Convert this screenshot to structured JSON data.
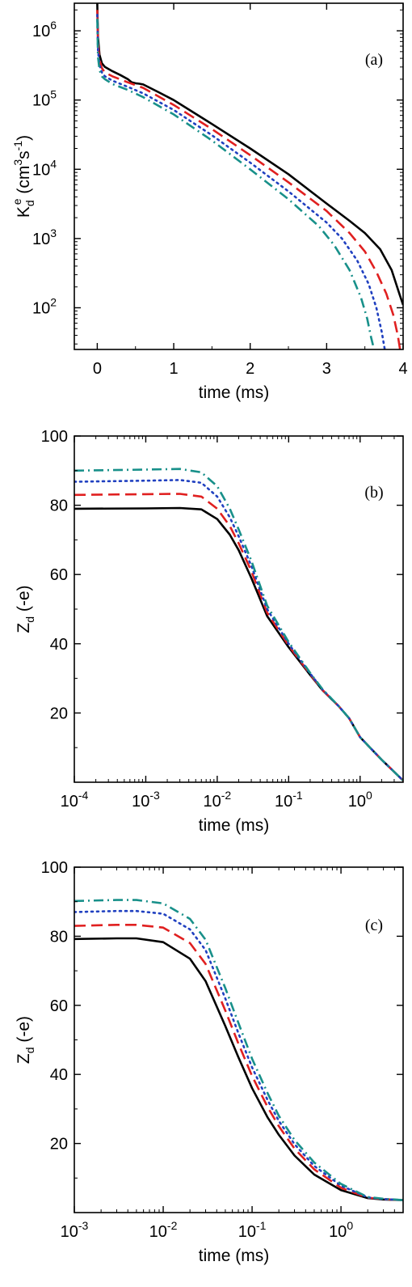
{
  "chart_data": [
    {
      "panel": "(a)",
      "type": "line",
      "xlabel": "time (ms)",
      "ylabel": "K",
      "ylabel_sub": "d",
      "ylabel_sup": "e",
      "ylabel_units_pre": "(cm",
      "ylabel_units_sup1": "3",
      "ylabel_units_mid": "s",
      "ylabel_units_sup2": "-1",
      "ylabel_units_post": ")",
      "xscale": "linear",
      "yscale": "log",
      "xlim": [
        -0.3,
        4.0
      ],
      "ylim": [
        25,
        2500000
      ],
      "xticks": [
        0,
        1,
        2,
        3,
        4
      ],
      "xtick_labels": [
        "0",
        "1",
        "2",
        "3",
        "4"
      ],
      "yticks": [
        100,
        1000,
        10000,
        100000,
        1000000
      ],
      "ytick_base": "10",
      "ytick_exps": [
        "2",
        "3",
        "4",
        "5",
        "6"
      ],
      "legend": "none",
      "series": [
        {
          "style": "solid",
          "color": "#000000",
          "x": [
            0.0,
            0.01,
            0.03,
            0.06,
            0.1,
            0.2,
            0.3,
            0.4,
            0.45,
            0.5,
            0.55,
            0.6,
            0.8,
            1.0,
            1.5,
            2.0,
            2.5,
            3.0,
            3.3,
            3.5,
            3.7,
            3.85,
            3.95,
            4.0
          ],
          "y": [
            2500000,
            800000,
            450000,
            340000,
            300000,
            260000,
            230000,
            200000,
            180000,
            175000,
            172000,
            168000,
            130000,
            100000,
            45000,
            20000,
            8500,
            3200,
            1800,
            1200,
            700,
            350,
            160,
            110
          ]
        },
        {
          "style": "dashed",
          "color": "#e02020",
          "x": [
            0.0,
            0.01,
            0.03,
            0.06,
            0.1,
            0.2,
            0.4,
            0.6,
            1.0,
            1.5,
            2.0,
            2.5,
            3.0,
            3.3,
            3.5,
            3.65,
            3.78,
            3.87,
            3.93,
            3.96
          ],
          "y": [
            2000000,
            650000,
            380000,
            290000,
            250000,
            220000,
            180000,
            150000,
            85000,
            38000,
            16000,
            6500,
            2500,
            1200,
            650,
            330,
            160,
            80,
            40,
            25
          ]
        },
        {
          "style": "dotted",
          "color": "#2040c0",
          "x": [
            0.0,
            0.01,
            0.03,
            0.06,
            0.1,
            0.2,
            0.4,
            0.6,
            1.0,
            1.5,
            2.0,
            2.5,
            3.0,
            3.2,
            3.4,
            3.55,
            3.65,
            3.72,
            3.76
          ],
          "y": [
            1700000,
            520000,
            320000,
            250000,
            220000,
            190000,
            155000,
            125000,
            72000,
            31000,
            12500,
            4800,
            1700,
            1000,
            480,
            220,
            100,
            45,
            25
          ]
        },
        {
          "style": "dashdot",
          "color": "#18908a",
          "x": [
            0.0,
            0.01,
            0.03,
            0.06,
            0.1,
            0.2,
            0.4,
            0.6,
            1.0,
            1.5,
            2.0,
            2.5,
            2.9,
            3.1,
            3.3,
            3.45,
            3.53,
            3.58,
            3.62
          ],
          "y": [
            1500000,
            420000,
            270000,
            220000,
            200000,
            170000,
            140000,
            110000,
            62000,
            26000,
            10000,
            3700,
            1500,
            800,
            350,
            140,
            70,
            38,
            25
          ]
        }
      ]
    },
    {
      "panel": "(b)",
      "type": "line",
      "xlabel": "time (ms)",
      "ylabel": "Z",
      "ylabel_sub": "d",
      "ylabel_units": "(-e)",
      "xscale": "log",
      "yscale": "linear",
      "xlim": [
        0.0001,
        4.0
      ],
      "ylim": [
        0,
        100
      ],
      "xticks": [
        0.0001,
        0.001,
        0.01,
        0.1,
        1
      ],
      "xtick_base": "10",
      "xtick_exps": [
        "-4",
        "-3",
        "-2",
        "-1",
        "0"
      ],
      "yticks": [
        20,
        40,
        60,
        80,
        100
      ],
      "ytick_labels": [
        "20",
        "40",
        "60",
        "80",
        "100"
      ],
      "legend": "none",
      "series": [
        {
          "style": "solid",
          "color": "#000000",
          "x": [
            0.0001,
            0.001,
            0.003,
            0.006,
            0.01,
            0.015,
            0.02,
            0.03,
            0.05,
            0.1,
            0.2,
            0.3,
            0.5,
            0.7,
            1.0,
            2.0,
            3.0,
            4.0
          ],
          "y": [
            79,
            79.1,
            79.2,
            78.8,
            76,
            71.5,
            67,
            59,
            48,
            39,
            31,
            26.5,
            22,
            18.5,
            13,
            6.5,
            3,
            0.5
          ]
        },
        {
          "style": "dashed",
          "color": "#e02020",
          "x": [
            0.0001,
            0.001,
            0.003,
            0.006,
            0.01,
            0.015,
            0.02,
            0.03,
            0.05,
            0.1,
            0.2,
            0.3,
            0.5,
            0.7,
            1.0,
            2.0,
            3.0,
            4.0
          ],
          "y": [
            83,
            83.2,
            83.3,
            82.5,
            79,
            74,
            69,
            61,
            49,
            39.5,
            31.2,
            26.6,
            22,
            18.5,
            13,
            6.5,
            3,
            0.5
          ]
        },
        {
          "style": "dotted",
          "color": "#2040c0",
          "x": [
            0.0001,
            0.001,
            0.003,
            0.006,
            0.01,
            0.015,
            0.02,
            0.03,
            0.05,
            0.1,
            0.2,
            0.3,
            0.5,
            0.7,
            1.0,
            2.0,
            3.0,
            4.0
          ],
          "y": [
            86.8,
            87.1,
            87.3,
            86.5,
            82.5,
            76.5,
            71,
            62.5,
            50,
            40,
            31.4,
            26.7,
            22,
            18.5,
            13,
            6.5,
            3,
            0.5
          ]
        },
        {
          "style": "dashdot",
          "color": "#18908a",
          "x": [
            0.0001,
            0.001,
            0.003,
            0.006,
            0.01,
            0.015,
            0.02,
            0.03,
            0.05,
            0.1,
            0.2,
            0.3,
            0.5,
            0.7,
            1.0,
            2.0,
            3.0,
            4.0
          ],
          "y": [
            90,
            90.3,
            90.5,
            89.5,
            85.5,
            79,
            73,
            64,
            51,
            40.5,
            31.6,
            26.8,
            22,
            18.5,
            13,
            6.5,
            3,
            0.5
          ]
        }
      ]
    },
    {
      "panel": "(c)",
      "type": "line",
      "xlabel": "time (ms)",
      "ylabel": "Z",
      "ylabel_sub": "d",
      "ylabel_units": "(-e)",
      "xscale": "log",
      "yscale": "linear",
      "xlim": [
        0.001,
        5.0
      ],
      "ylim": [
        0,
        100
      ],
      "xticks": [
        0.001,
        0.01,
        0.1,
        1
      ],
      "xtick_base": "10",
      "xtick_exps": [
        "-3",
        "-2",
        "-1",
        "0"
      ],
      "yticks": [
        20,
        40,
        60,
        80,
        100
      ],
      "ytick_labels": [
        "20",
        "40",
        "60",
        "80",
        "100"
      ],
      "legend": "none",
      "series": [
        {
          "style": "solid",
          "color": "#000000",
          "x": [
            0.001,
            0.003,
            0.005,
            0.01,
            0.02,
            0.03,
            0.05,
            0.07,
            0.1,
            0.15,
            0.2,
            0.3,
            0.5,
            1.0,
            2.0,
            3.0,
            5.0
          ],
          "y": [
            79.2,
            79.4,
            79.4,
            78.3,
            73.5,
            67,
            54,
            45,
            36,
            27.5,
            22.5,
            16.5,
            11,
            6.5,
            4.2,
            3.8,
            3.6
          ]
        },
        {
          "style": "dashed",
          "color": "#e02020",
          "x": [
            0.001,
            0.003,
            0.005,
            0.01,
            0.02,
            0.03,
            0.05,
            0.07,
            0.1,
            0.15,
            0.2,
            0.3,
            0.5,
            1.0,
            2.0,
            3.0,
            5.0
          ],
          "y": [
            83,
            83.3,
            83.3,
            82.5,
            78,
            72,
            58.5,
            49,
            39.5,
            30.5,
            25,
            18.5,
            12.5,
            7.2,
            4.3,
            3.9,
            3.6
          ]
        },
        {
          "style": "dotted",
          "color": "#2040c0",
          "x": [
            0.001,
            0.003,
            0.005,
            0.01,
            0.02,
            0.03,
            0.05,
            0.07,
            0.1,
            0.15,
            0.2,
            0.3,
            0.5,
            1.0,
            2.0,
            3.0,
            5.0
          ],
          "y": [
            87,
            87.3,
            87.3,
            86.5,
            82,
            76,
            62,
            52,
            42,
            32.5,
            26.5,
            19.8,
            13.5,
            7.8,
            4.4,
            3.9,
            3.6
          ]
        },
        {
          "style": "dashdot",
          "color": "#18908a",
          "x": [
            0.001,
            0.003,
            0.005,
            0.01,
            0.02,
            0.03,
            0.05,
            0.07,
            0.1,
            0.15,
            0.2,
            0.3,
            0.5,
            1.0,
            2.0,
            3.0,
            5.0
          ],
          "y": [
            90.2,
            90.5,
            90.5,
            89.5,
            85,
            79,
            65,
            55,
            44.5,
            34.5,
            28,
            21,
            14.5,
            8.3,
            4.5,
            4.0,
            3.6
          ]
        }
      ]
    }
  ]
}
